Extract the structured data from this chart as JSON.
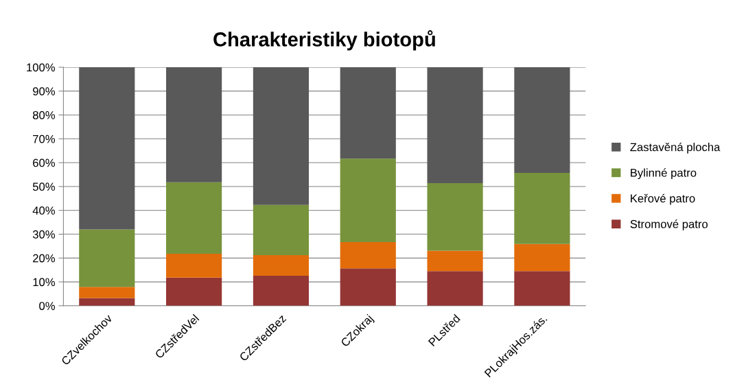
{
  "chart_data": {
    "type": "bar",
    "title": "Charakteristiky biotopů",
    "stacked": true,
    "categories": [
      "CZvelkochov",
      "CZstředVel",
      "CZstředBez",
      "CZokraj",
      "PLstřed",
      "PLokrajHos.zás."
    ],
    "series": [
      {
        "name": "Stromové patro",
        "color": "#943634",
        "values": [
          3.2,
          11.8,
          12.6,
          15.7,
          14.5,
          14.5
        ]
      },
      {
        "name": "Keřové patro",
        "color": "#e36c0a",
        "values": [
          4.7,
          10.0,
          8.6,
          11.0,
          8.6,
          11.4
        ]
      },
      {
        "name": "Bylinné patro",
        "color": "#77933c",
        "values": [
          24.1,
          30.0,
          21.1,
          35.0,
          28.3,
          29.8
        ]
      },
      {
        "name": "Zastavěná plocha",
        "color": "#595959",
        "values": [
          68.0,
          48.2,
          57.7,
          38.3,
          48.6,
          44.3
        ]
      }
    ],
    "ylim": [
      0,
      100
    ],
    "yticks": [
      {
        "value": 0,
        "label": "0%"
      },
      {
        "value": 10,
        "label": "10%"
      },
      {
        "value": 20,
        "label": "20%"
      },
      {
        "value": 30,
        "label": "30%"
      },
      {
        "value": 40,
        "label": "40%"
      },
      {
        "value": 50,
        "label": "50%"
      },
      {
        "value": 60,
        "label": "60%"
      },
      {
        "value": 70,
        "label": "70%"
      },
      {
        "value": 80,
        "label": "80%"
      },
      {
        "value": 90,
        "label": "90%"
      },
      {
        "value": 100,
        "label": "100%"
      }
    ],
    "grid": "y",
    "legend": "right"
  }
}
